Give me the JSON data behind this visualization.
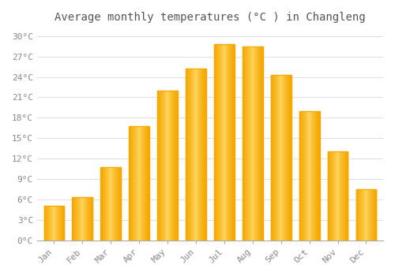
{
  "title": "Average monthly temperatures (°C ) in Changleng",
  "months": [
    "Jan",
    "Feb",
    "Mar",
    "Apr",
    "May",
    "Jun",
    "Jul",
    "Aug",
    "Sep",
    "Oct",
    "Nov",
    "Dec"
  ],
  "values": [
    5.0,
    6.3,
    10.7,
    16.8,
    22.0,
    25.2,
    28.8,
    28.5,
    24.3,
    19.0,
    13.0,
    7.5
  ],
  "bar_color_outer": "#F5A800",
  "bar_color_inner": "#FFD966",
  "ylim": [
    0,
    31
  ],
  "yticks": [
    0,
    3,
    6,
    9,
    12,
    15,
    18,
    21,
    24,
    27,
    30
  ],
  "ytick_labels": [
    "0°C",
    "3°C",
    "6°C",
    "9°C",
    "12°C",
    "15°C",
    "18°C",
    "21°C",
    "24°C",
    "27°C",
    "30°C"
  ],
  "background_color": "#FFFFFF",
  "grid_color": "#DDDDDD",
  "title_fontsize": 10,
  "tick_fontsize": 8,
  "font_family": "monospace",
  "bar_width": 0.7,
  "spine_color": "#AAAAAA"
}
